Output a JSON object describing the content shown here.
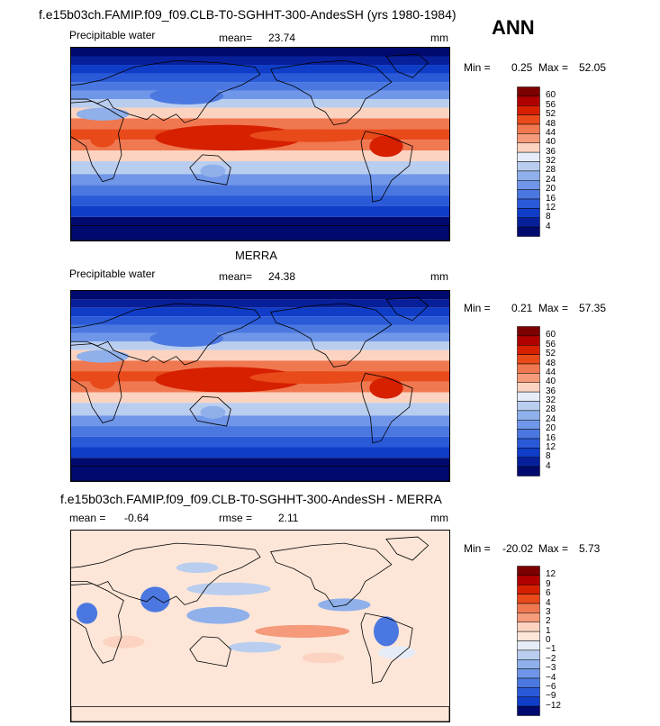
{
  "title": "f.e15b03ch.FAMIP.f09_f09.CLB-T0-SGHHT-300-AndesSH (yrs 1980-1984)",
  "season": "ANN",
  "panels": [
    {
      "heading": "",
      "variable": "Precipitable water",
      "stat1_label": "mean=",
      "stat1_value": "23.74",
      "stat2_label": "",
      "stat2_value": "",
      "units": "mm",
      "min_label": "Min =",
      "min_value": "0.25",
      "max_label": "Max =",
      "max_value": "52.05"
    },
    {
      "heading": "MERRA",
      "variable": "Precipitable water",
      "stat1_label": "mean=",
      "stat1_value": "24.38",
      "stat2_label": "",
      "stat2_value": "",
      "units": "mm",
      "min_label": "Min =",
      "min_value": "0.21",
      "max_label": "Max =",
      "max_value": "57.35"
    },
    {
      "heading": "f.e15b03ch.FAMIP.f09_f09.CLB-T0-SGHHT-300-AndesSH - MERRA",
      "variable": "",
      "stat1_label": "mean =",
      "stat1_value": "-0.64",
      "stat2_label": "rmse =",
      "stat2_value": "2.11",
      "units": "mm",
      "min_label": "Min =",
      "min_value": "-20.02",
      "max_label": "Max =",
      "max_value": "5.73"
    }
  ],
  "chart_data": [
    {
      "type": "heatmap",
      "panel": "model",
      "colorbar_levels": [
        "60",
        "56",
        "52",
        "48",
        "44",
        "40",
        "36",
        "32",
        "28",
        "24",
        "20",
        "16",
        "12",
        "8",
        "4"
      ],
      "colors": [
        "#7d0000",
        "#b10000",
        "#d62000",
        "#e84a1a",
        "#f07850",
        "#f59a7a",
        "#fbd3c0",
        "#e5ecf7",
        "#b9cdef",
        "#8fb0ea",
        "#6f96e8",
        "#4b78e0",
        "#2a5ad8",
        "#0f3dc8",
        "#081f9a",
        "#000a6e"
      ],
      "mean": 23.74,
      "min": 0.25,
      "max": 52.05,
      "units": "mm"
    },
    {
      "type": "heatmap",
      "panel": "MERRA",
      "colorbar_levels": [
        "60",
        "56",
        "52",
        "48",
        "44",
        "40",
        "36",
        "32",
        "28",
        "24",
        "20",
        "16",
        "12",
        "8",
        "4"
      ],
      "colors": [
        "#7d0000",
        "#b10000",
        "#d62000",
        "#e84a1a",
        "#f07850",
        "#f59a7a",
        "#fbd3c0",
        "#e5ecf7",
        "#b9cdef",
        "#8fb0ea",
        "#6f96e8",
        "#4b78e0",
        "#2a5ad8",
        "#0f3dc8",
        "#081f9a",
        "#000a6e"
      ],
      "mean": 24.38,
      "min": 0.21,
      "max": 57.35,
      "units": "mm"
    },
    {
      "type": "heatmap",
      "panel": "difference",
      "colorbar_levels": [
        "12",
        "9",
        "6",
        "4",
        "3",
        "2",
        "1",
        "0",
        "−1",
        "−2",
        "−3",
        "−4",
        "−6",
        "−9",
        "−12"
      ],
      "colors": [
        "#7d0000",
        "#b10000",
        "#d62000",
        "#e84a1a",
        "#f07850",
        "#f59a7a",
        "#fbd3c0",
        "#fde6d8",
        "#e5ecf7",
        "#b9cdef",
        "#8fb0ea",
        "#6f96e8",
        "#4b78e0",
        "#2a5ad8",
        "#0f3dc8",
        "#000a6e"
      ],
      "mean": -0.64,
      "rmse": 2.11,
      "min": -20.02,
      "max": 5.73,
      "units": "mm"
    }
  ]
}
